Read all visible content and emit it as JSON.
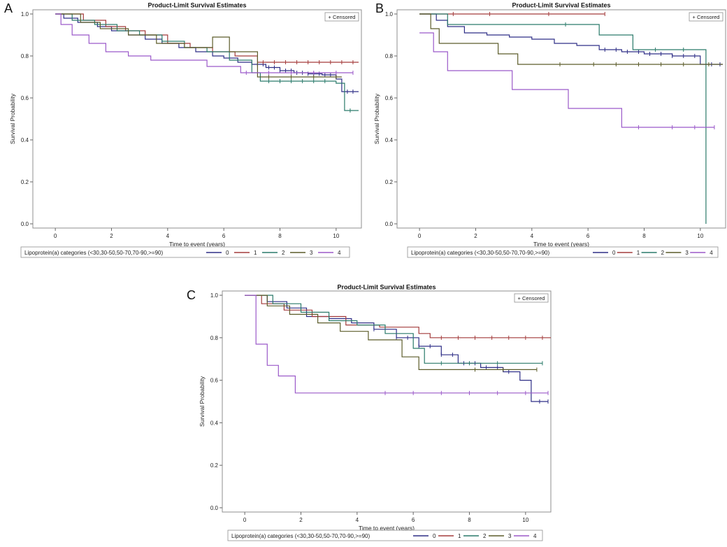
{
  "chart_data": [
    {
      "panel": "A",
      "type": "line",
      "title": "Product-Limit Survival Estimates",
      "xlabel": "Time to event (years)",
      "ylabel": "Survival Probability",
      "xlim": [
        -0.8,
        10.9
      ],
      "ylim": [
        -0.02,
        1.02
      ],
      "xticks": [
        "0",
        "2",
        "4",
        "6",
        "8",
        "10"
      ],
      "yticks": [
        "0.0",
        "0.2",
        "0.4",
        "0.6",
        "0.8",
        "1.0"
      ],
      "censored_label": "+ Censored",
      "legend_title": "Lipoprotein(a) categories (<30,30-50,50-70,70-90,>=90)",
      "series": [
        {
          "name": "0",
          "color": "#2e2e86",
          "x": [
            0,
            0.3,
            0.8,
            1.5,
            2.0,
            2.6,
            3.2,
            3.8,
            4.4,
            5.0,
            5.6,
            6.0,
            6.5,
            7.0,
            7.5,
            8.0,
            8.5,
            9.0,
            9.5,
            10.0,
            10.2,
            10.8
          ],
          "y": [
            1.0,
            0.98,
            0.96,
            0.94,
            0.92,
            0.9,
            0.88,
            0.86,
            0.84,
            0.82,
            0.8,
            0.79,
            0.77,
            0.76,
            0.745,
            0.73,
            0.72,
            0.715,
            0.71,
            0.69,
            0.63,
            0.63
          ],
          "censor_x": [
            7.2,
            7.4,
            7.6,
            7.8,
            8.0,
            8.2,
            8.4,
            8.6,
            8.8,
            9.0,
            9.2,
            9.4,
            9.6,
            9.8,
            10.4,
            10.6
          ]
        },
        {
          "name": "1",
          "color": "#a33b3b",
          "x": [
            0,
            1.0,
            1.8,
            2.5,
            3.2,
            4.0,
            4.8,
            5.6,
            6.4,
            7.2,
            10.8
          ],
          "y": [
            1.0,
            0.97,
            0.94,
            0.92,
            0.9,
            0.86,
            0.84,
            0.82,
            0.8,
            0.77,
            0.77
          ],
          "censor_x": [
            7.4,
            7.8,
            8.2,
            8.6,
            9.0,
            9.4,
            9.8,
            10.2,
            10.6
          ]
        },
        {
          "name": "2",
          "color": "#2a7a6a",
          "x": [
            0,
            0.6,
            1.4,
            2.2,
            3.0,
            3.8,
            4.6,
            5.4,
            6.2,
            7.0,
            7.3,
            8.0,
            10.0,
            10.3,
            10.8
          ],
          "y": [
            1.0,
            0.97,
            0.95,
            0.92,
            0.9,
            0.87,
            0.84,
            0.82,
            0.78,
            0.72,
            0.68,
            0.68,
            0.67,
            0.54,
            0.54
          ],
          "censor_x": [
            7.6,
            8.0,
            8.4,
            8.8,
            9.2,
            9.6,
            10.5
          ]
        },
        {
          "name": "3",
          "color": "#5c5c2a",
          "x": [
            0,
            0.9,
            1.6,
            2.6,
            3.6,
            4.6,
            5.6,
            6.2,
            7.2,
            10.2
          ],
          "y": [
            1.0,
            0.96,
            0.93,
            0.9,
            0.86,
            0.84,
            0.89,
            0.82,
            0.7,
            0.7
          ],
          "censor_x": [
            7.6,
            8.4,
            9.2,
            10.0
          ]
        },
        {
          "name": "4",
          "color": "#9b59c9",
          "x": [
            0,
            0.2,
            0.6,
            1.2,
            1.8,
            2.6,
            3.4,
            5.4,
            6.6,
            10.6
          ],
          "y": [
            1.0,
            0.95,
            0.9,
            0.86,
            0.82,
            0.8,
            0.78,
            0.75,
            0.72,
            0.72
          ],
          "censor_x": [
            6.8,
            7.6,
            8.4,
            9.2,
            10.0,
            10.6
          ]
        }
      ]
    },
    {
      "panel": "B",
      "type": "line",
      "title": "Product-Limit Survival Estimates",
      "xlabel": "Time to event (years)",
      "ylabel": "Survival Probability",
      "xlim": [
        -0.8,
        10.9
      ],
      "ylim": [
        -0.02,
        1.02
      ],
      "xticks": [
        "0",
        "2",
        "4",
        "6",
        "8",
        "10"
      ],
      "yticks": [
        "0.0",
        "0.2",
        "0.4",
        "0.6",
        "0.8",
        "1.0"
      ],
      "censored_label": "+ Censored",
      "legend_title": "Lipoprotein(a) categories (<30,30-50,50-70,70-90,>=90)",
      "series": [
        {
          "name": "0",
          "color": "#2e2e86",
          "x": [
            0,
            0.6,
            1.0,
            1.6,
            2.4,
            3.2,
            4.0,
            4.8,
            5.6,
            6.4,
            7.2,
            8.0,
            9.0,
            10.0,
            10.8
          ],
          "y": [
            1.0,
            0.97,
            0.94,
            0.91,
            0.9,
            0.89,
            0.88,
            0.86,
            0.85,
            0.83,
            0.82,
            0.81,
            0.8,
            0.76,
            0.76
          ],
          "censor_x": [
            6.6,
            7.0,
            7.4,
            7.8,
            8.2,
            8.6,
            9.0,
            9.4,
            9.8,
            10.4,
            10.7
          ]
        },
        {
          "name": "1",
          "color": "#a33b3b",
          "x": [
            0,
            6.6
          ],
          "y": [
            1.0,
            1.0
          ],
          "censor_x": [
            1.2,
            2.5,
            4.6,
            6.6
          ]
        },
        {
          "name": "2",
          "color": "#2a7a6a",
          "x": [
            0,
            1.0,
            6.4,
            7.6,
            10.2,
            10.2
          ],
          "y": [
            1.0,
            0.95,
            0.9,
            0.83,
            0.83,
            0.0
          ],
          "censor_x": [
            5.2,
            8.4,
            9.4
          ]
        },
        {
          "name": "3",
          "color": "#5c5c2a",
          "x": [
            0,
            0.4,
            0.7,
            2.8,
            3.5,
            10.8
          ],
          "y": [
            1.0,
            0.93,
            0.86,
            0.81,
            0.76,
            0.76
          ],
          "censor_x": [
            5.0,
            6.2,
            7.0,
            7.8,
            8.6,
            9.4,
            10.3
          ]
        },
        {
          "name": "4",
          "color": "#9b59c9",
          "x": [
            0,
            0.5,
            1.0,
            3.3,
            5.3,
            7.2,
            10.5
          ],
          "y": [
            0.91,
            0.82,
            0.73,
            0.64,
            0.55,
            0.46,
            0.46
          ],
          "censor_x": [
            7.8,
            9.0,
            9.8,
            10.5
          ]
        }
      ]
    },
    {
      "panel": "C",
      "type": "line",
      "title": "Product-Limit Survival Estimates",
      "xlabel": "Time to event (years)",
      "ylabel": "Survival Probability",
      "xlim": [
        -0.8,
        10.9
      ],
      "ylim": [
        -0.02,
        1.02
      ],
      "xticks": [
        "0",
        "2",
        "4",
        "6",
        "8",
        "10"
      ],
      "yticks": [
        "0.0",
        "0.2",
        "0.4",
        "0.6",
        "0.8",
        "1.0"
      ],
      "censored_label": "+ Censored",
      "legend_title": "Lipoprotein(a) categories (<30,30-50,50-70,70-90,>=90)",
      "series": [
        {
          "name": "0",
          "color": "#2e2e86",
          "x": [
            0,
            0.8,
            1.5,
            2.2,
            3.0,
            3.8,
            4.6,
            5.4,
            6.2,
            7.0,
            7.6,
            8.4,
            9.2,
            9.8,
            10.2,
            10.8
          ],
          "y": [
            1.0,
            0.97,
            0.94,
            0.9,
            0.89,
            0.87,
            0.84,
            0.8,
            0.76,
            0.72,
            0.68,
            0.66,
            0.64,
            0.6,
            0.5,
            0.5
          ],
          "censor_x": [
            4.6,
            5.0,
            5.4,
            5.8,
            6.2,
            6.6,
            7.0,
            7.4,
            7.8,
            8.2,
            8.6,
            9.0,
            9.4,
            10.5,
            10.8
          ]
        },
        {
          "name": "1",
          "color": "#a33b3b",
          "x": [
            0,
            0.6,
            1.4,
            2.4,
            3.6,
            4.8,
            6.2,
            6.6,
            10.9
          ],
          "y": [
            1.0,
            0.96,
            0.93,
            0.9,
            0.86,
            0.85,
            0.82,
            0.8,
            0.8
          ],
          "censor_x": [
            7.0,
            7.6,
            8.2,
            8.8,
            9.4,
            10.0,
            10.6
          ]
        },
        {
          "name": "2",
          "color": "#2a7a6a",
          "x": [
            0,
            1.0,
            2.0,
            3.0,
            4.0,
            5.0,
            6.0,
            6.4,
            10.6
          ],
          "y": [
            1.0,
            0.96,
            0.92,
            0.88,
            0.86,
            0.82,
            0.75,
            0.68,
            0.68
          ],
          "censor_x": [
            7.0,
            8.0,
            9.0,
            10.6
          ]
        },
        {
          "name": "3",
          "color": "#5c5c2a",
          "x": [
            0,
            0.8,
            1.6,
            2.6,
            3.4,
            4.4,
            5.6,
            6.2,
            7.6,
            10.4
          ],
          "y": [
            1.0,
            0.95,
            0.91,
            0.87,
            0.83,
            0.79,
            0.71,
            0.65,
            0.65,
            0.65
          ],
          "censor_x": [
            8.2,
            9.2,
            10.4
          ]
        },
        {
          "name": "4",
          "color": "#9b59c9",
          "x": [
            0,
            0.4,
            0.8,
            1.2,
            1.8,
            10.8
          ],
          "y": [
            1.0,
            0.77,
            0.67,
            0.62,
            0.54,
            0.54
          ],
          "censor_x": [
            5.0,
            6.0,
            7.0,
            8.0,
            9.0,
            10.0,
            10.8
          ]
        }
      ]
    }
  ],
  "panels": [
    {
      "label": "A"
    },
    {
      "label": "B"
    },
    {
      "label": "C"
    }
  ]
}
